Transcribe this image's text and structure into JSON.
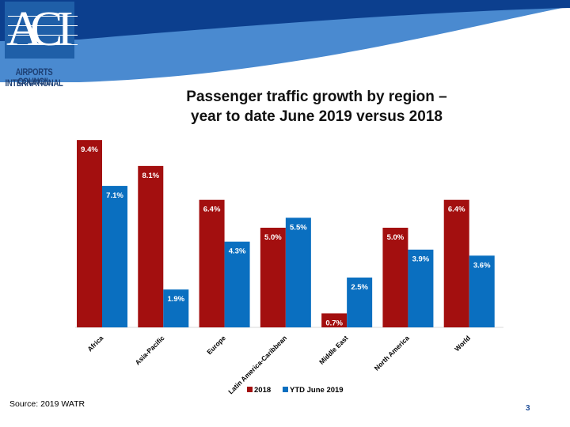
{
  "logo": {
    "letters": [
      "A",
      "C",
      "I"
    ],
    "line1": "AIRPORTS COUNCIL",
    "line2": "INTERNATIONAL"
  },
  "colors": {
    "series_2018": "#a30f0f",
    "series_ytd": "#0a6fc0",
    "banner_dark": "#0c3f8e",
    "banner_light": "#4a8ad0"
  },
  "slide": {
    "title_line1": "Passenger traffic growth by region –",
    "title_line2": "year to date June 2019 versus 2018",
    "source": "Source: 2019 WATR",
    "page_number": "3"
  },
  "chart_data": {
    "type": "bar",
    "categories": [
      "Africa",
      "Asia-Pacific",
      "Europe",
      "Latin America-Caribbean",
      "Middle East",
      "North America",
      "World"
    ],
    "series": [
      {
        "name": "2018",
        "values": [
          9.4,
          8.1,
          6.4,
          5.0,
          0.7,
          5.0,
          6.4
        ],
        "labels": [
          "9.4%",
          "8.1%",
          "6.4%",
          "5.0%",
          "0.7%",
          "5.0%",
          "6.4%"
        ]
      },
      {
        "name": "YTD June 2019",
        "values": [
          7.1,
          1.9,
          4.3,
          5.5,
          2.5,
          3.9,
          3.6
        ],
        "labels": [
          "7.1%",
          "1.9%",
          "4.3%",
          "5.5%",
          "2.5%",
          "3.9%",
          "3.6%"
        ]
      }
    ],
    "title": "Passenger traffic growth by region – year to date June 2019 versus 2018",
    "xlabel": "",
    "ylabel": "",
    "ylim": [
      0,
      10
    ],
    "legend_position": "bottom",
    "grid": false
  }
}
